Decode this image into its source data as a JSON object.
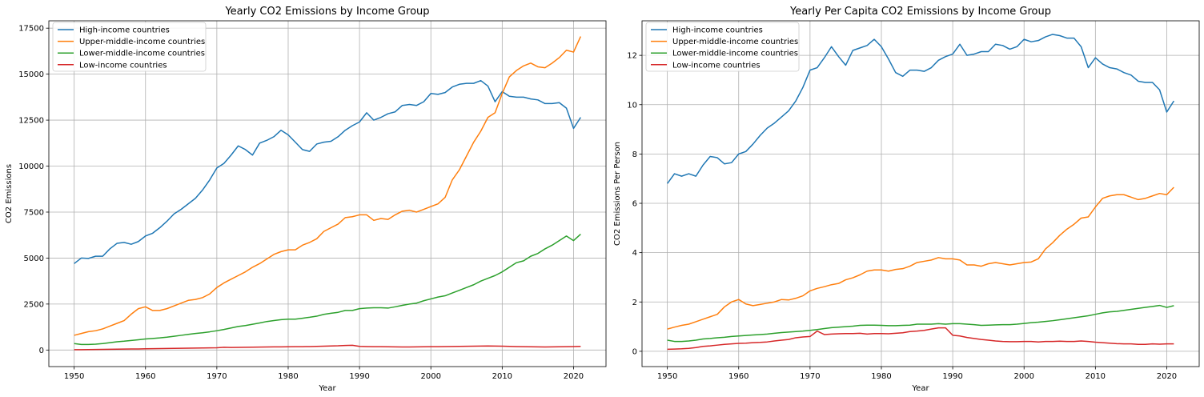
{
  "chart_data": [
    {
      "type": "line",
      "title": "Yearly CO2 Emissions by Income Group",
      "xlabel": "Year",
      "ylabel": "CO2 Emissions",
      "xlim": [
        1946.45,
        2024.55
      ],
      "ylim": [
        -900,
        17900
      ],
      "xticks": [
        1950,
        1960,
        1970,
        1980,
        1990,
        2000,
        2010,
        2020
      ],
      "yticks": [
        0,
        2500,
        5000,
        7500,
        10000,
        12500,
        15000,
        17500
      ],
      "grid": true,
      "legend_position": "top-left",
      "x_start": 1950,
      "series": [
        {
          "name": "High-income countries",
          "color": "#1f77b4",
          "values": [
            4700,
            5000,
            4980,
            5100,
            5100,
            5500,
            5800,
            5850,
            5750,
            5900,
            6200,
            6350,
            6650,
            7000,
            7400,
            7650,
            7950,
            8250,
            8700,
            9250,
            9900,
            10150,
            10600,
            11100,
            10900,
            10600,
            11250,
            11400,
            11600,
            11950,
            11700,
            11300,
            10900,
            10800,
            11200,
            11300,
            11350,
            11600,
            11950,
            12200,
            12400,
            12900,
            12500,
            12650,
            12850,
            12950,
            13300,
            13350,
            13300,
            13500,
            13950,
            13900,
            14000,
            14300,
            14450,
            14500,
            14500,
            14650,
            14350,
            13500,
            14050,
            13800,
            13750,
            13750,
            13650,
            13600,
            13400,
            13400,
            13450,
            13150,
            12050,
            12650
          ]
        },
        {
          "name": "Upper-middle-income countries",
          "color": "#ff7f0e",
          "values": [
            800,
            900,
            1000,
            1050,
            1150,
            1300,
            1450,
            1600,
            1950,
            2250,
            2350,
            2150,
            2150,
            2250,
            2400,
            2550,
            2700,
            2750,
            2850,
            3050,
            3400,
            3650,
            3850,
            4050,
            4250,
            4500,
            4700,
            4950,
            5200,
            5350,
            5450,
            5450,
            5700,
            5850,
            6050,
            6450,
            6650,
            6850,
            7200,
            7250,
            7350,
            7350,
            7050,
            7150,
            7100,
            7350,
            7550,
            7600,
            7500,
            7650,
            7800,
            7950,
            8300,
            9250,
            9800,
            10550,
            11300,
            11900,
            12650,
            12900,
            13950,
            14850,
            15200,
            15450,
            15600,
            15400,
            15350,
            15600,
            15900,
            16300,
            16200,
            17050
          ]
        },
        {
          "name": "Lower-middle-income countries",
          "color": "#2ca02c",
          "values": [
            350,
            300,
            300,
            320,
            350,
            400,
            450,
            480,
            520,
            560,
            600,
            630,
            660,
            700,
            750,
            800,
            850,
            900,
            940,
            990,
            1050,
            1120,
            1200,
            1280,
            1330,
            1400,
            1470,
            1550,
            1600,
            1650,
            1680,
            1680,
            1730,
            1780,
            1840,
            1940,
            2000,
            2050,
            2150,
            2150,
            2250,
            2280,
            2300,
            2300,
            2280,
            2350,
            2430,
            2500,
            2550,
            2680,
            2780,
            2880,
            2950,
            3100,
            3250,
            3400,
            3550,
            3750,
            3900,
            4050,
            4250,
            4500,
            4750,
            4850,
            5100,
            5250,
            5500,
            5700,
            5950,
            6200,
            5950,
            6300
          ]
        },
        {
          "name": "Low-income countries",
          "color": "#d62728",
          "values": [
            20,
            20,
            25,
            30,
            35,
            40,
            45,
            50,
            55,
            60,
            70,
            75,
            80,
            85,
            90,
            95,
            100,
            105,
            110,
            115,
            120,
            150,
            140,
            145,
            150,
            155,
            160,
            165,
            170,
            170,
            175,
            180,
            185,
            190,
            200,
            210,
            220,
            230,
            250,
            260,
            200,
            190,
            185,
            180,
            175,
            170,
            165,
            165,
            170,
            175,
            180,
            185,
            190,
            195,
            200,
            205,
            210,
            215,
            220,
            215,
            210,
            200,
            190,
            180,
            175,
            170,
            165,
            170,
            175,
            180,
            190,
            200
          ]
        }
      ]
    },
    {
      "type": "line",
      "title": "Yearly Per Capita CO2 Emissions by Income Group",
      "xlabel": "Year",
      "ylabel": "CO2 Emissions Per Person",
      "xlim": [
        1946.45,
        2024.55
      ],
      "ylim": [
        -0.62,
        13.4
      ],
      "xticks": [
        1950,
        1960,
        1970,
        1980,
        1990,
        2000,
        2010,
        2020
      ],
      "yticks": [
        0,
        2,
        4,
        6,
        8,
        10,
        12
      ],
      "grid": true,
      "legend_position": "top-left",
      "x_start": 1950,
      "series": [
        {
          "name": "High-income countries",
          "color": "#1f77b4",
          "values": [
            6.8,
            7.2,
            7.1,
            7.2,
            7.1,
            7.55,
            7.9,
            7.85,
            7.6,
            7.65,
            8.0,
            8.1,
            8.4,
            8.75,
            9.05,
            9.25,
            9.5,
            9.75,
            10.15,
            10.7,
            11.4,
            11.5,
            11.9,
            12.35,
            11.95,
            11.6,
            12.2,
            12.3,
            12.4,
            12.65,
            12.35,
            11.85,
            11.3,
            11.15,
            11.4,
            11.4,
            11.35,
            11.5,
            11.8,
            11.95,
            12.05,
            12.45,
            12.0,
            12.05,
            12.15,
            12.15,
            12.45,
            12.4,
            12.25,
            12.35,
            12.65,
            12.55,
            12.6,
            12.75,
            12.85,
            12.8,
            12.7,
            12.7,
            12.35,
            11.5,
            11.9,
            11.65,
            11.5,
            11.45,
            11.3,
            11.2,
            10.95,
            10.9,
            10.9,
            10.6,
            9.7,
            10.15
          ]
        },
        {
          "name": "Upper-middle-income countries",
          "color": "#ff7f0e",
          "values": [
            0.9,
            0.98,
            1.05,
            1.1,
            1.2,
            1.3,
            1.4,
            1.5,
            1.8,
            2.0,
            2.1,
            1.92,
            1.85,
            1.9,
            1.95,
            2.0,
            2.1,
            2.08,
            2.15,
            2.25,
            2.45,
            2.55,
            2.62,
            2.7,
            2.75,
            2.9,
            2.98,
            3.1,
            3.25,
            3.3,
            3.3,
            3.25,
            3.32,
            3.35,
            3.45,
            3.6,
            3.65,
            3.7,
            3.8,
            3.75,
            3.75,
            3.7,
            3.5,
            3.5,
            3.45,
            3.55,
            3.6,
            3.55,
            3.5,
            3.55,
            3.6,
            3.62,
            3.75,
            4.15,
            4.4,
            4.7,
            4.95,
            5.15,
            5.4,
            5.45,
            5.85,
            6.2,
            6.3,
            6.35,
            6.35,
            6.25,
            6.15,
            6.2,
            6.3,
            6.4,
            6.35,
            6.65
          ]
        },
        {
          "name": "Lower-middle-income countries",
          "color": "#2ca02c",
          "values": [
            0.45,
            0.4,
            0.4,
            0.42,
            0.45,
            0.5,
            0.52,
            0.55,
            0.57,
            0.6,
            0.62,
            0.64,
            0.66,
            0.68,
            0.7,
            0.73,
            0.76,
            0.78,
            0.8,
            0.82,
            0.85,
            0.88,
            0.92,
            0.96,
            0.98,
            1.0,
            1.02,
            1.05,
            1.06,
            1.06,
            1.05,
            1.04,
            1.04,
            1.05,
            1.06,
            1.1,
            1.1,
            1.1,
            1.12,
            1.1,
            1.12,
            1.12,
            1.1,
            1.08,
            1.05,
            1.06,
            1.07,
            1.08,
            1.08,
            1.1,
            1.13,
            1.16,
            1.18,
            1.21,
            1.24,
            1.28,
            1.32,
            1.36,
            1.4,
            1.44,
            1.5,
            1.56,
            1.6,
            1.62,
            1.66,
            1.7,
            1.74,
            1.78,
            1.82,
            1.86,
            1.78,
            1.85
          ]
        },
        {
          "name": "Low-income countries",
          "color": "#d62728",
          "values": [
            0.08,
            0.09,
            0.1,
            0.12,
            0.15,
            0.2,
            0.22,
            0.25,
            0.28,
            0.3,
            0.32,
            0.33,
            0.35,
            0.36,
            0.38,
            0.42,
            0.45,
            0.48,
            0.55,
            0.58,
            0.6,
            0.82,
            0.68,
            0.7,
            0.71,
            0.72,
            0.72,
            0.73,
            0.7,
            0.72,
            0.72,
            0.71,
            0.73,
            0.75,
            0.8,
            0.82,
            0.85,
            0.9,
            0.95,
            0.95,
            0.65,
            0.62,
            0.56,
            0.52,
            0.48,
            0.45,
            0.42,
            0.4,
            0.39,
            0.39,
            0.4,
            0.4,
            0.38,
            0.4,
            0.4,
            0.41,
            0.4,
            0.4,
            0.42,
            0.4,
            0.37,
            0.35,
            0.33,
            0.31,
            0.3,
            0.3,
            0.28,
            0.28,
            0.3,
            0.29,
            0.3,
            0.3
          ]
        }
      ]
    }
  ]
}
